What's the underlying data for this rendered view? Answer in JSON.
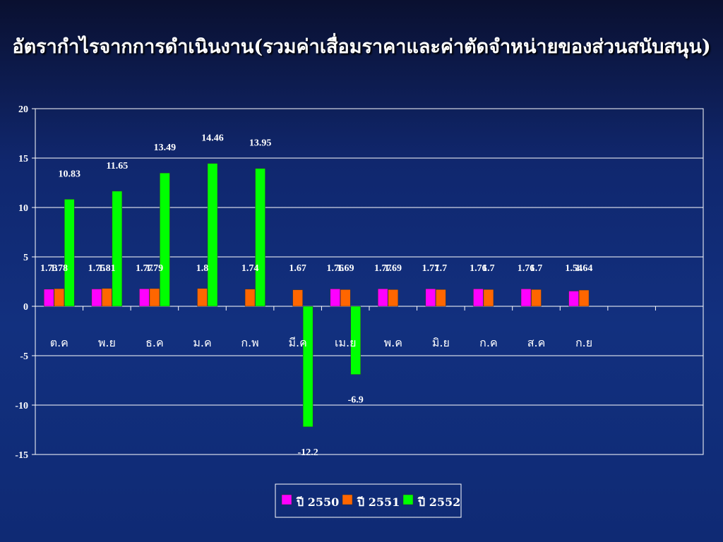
{
  "title": "อัตรากำไรจากการดำเนินงาน(รวมค่าเสื่อมราคาและค่าตัดจำหน่ายของส่วนสนับสนุน)",
  "colors": {
    "series": [
      "#ff00ff",
      "#ff6600",
      "#00ff00"
    ],
    "grid": "#ffffff",
    "text": "#ffffff",
    "background": "#12307f"
  },
  "chart_data": {
    "type": "bar",
    "title": "อัตรากำไรจากการดำเนินงาน(รวมค่าเสื่อมราคาและค่าตัดจำหน่ายของส่วนสนับสนุน)",
    "categories": [
      "ต.ค",
      "พ.ย",
      "ธ.ค",
      "ม.ค",
      "ก.พ",
      "มี.ค",
      "เม.ย",
      "พ.ค",
      "มิ.ย",
      "ก.ค",
      "ส.ค",
      "ก.ย",
      "",
      ""
    ],
    "series": [
      {
        "name": "ปี 2550",
        "values": [
          1.73,
          1.75,
          1.77,
          null,
          null,
          null,
          1.76,
          1.77,
          1.77,
          1.76,
          1.76,
          1.54,
          null,
          null
        ]
      },
      {
        "name": "ปี 2551",
        "values": [
          1.78,
          1.81,
          1.79,
          1.8,
          1.74,
          1.67,
          1.69,
          1.69,
          1.7,
          1.7,
          1.7,
          1.64,
          null,
          null
        ]
      },
      {
        "name": "ปี 2552",
        "values": [
          10.83,
          11.65,
          13.49,
          14.46,
          13.95,
          -12.2,
          -6.9,
          null,
          null,
          null,
          null,
          null,
          null,
          null
        ]
      }
    ],
    "ylim": [
      -15,
      20
    ],
    "yticks": [
      20,
      15,
      10,
      5,
      0,
      -5,
      -10,
      -15
    ],
    "grid": true,
    "legend": "bottom"
  }
}
